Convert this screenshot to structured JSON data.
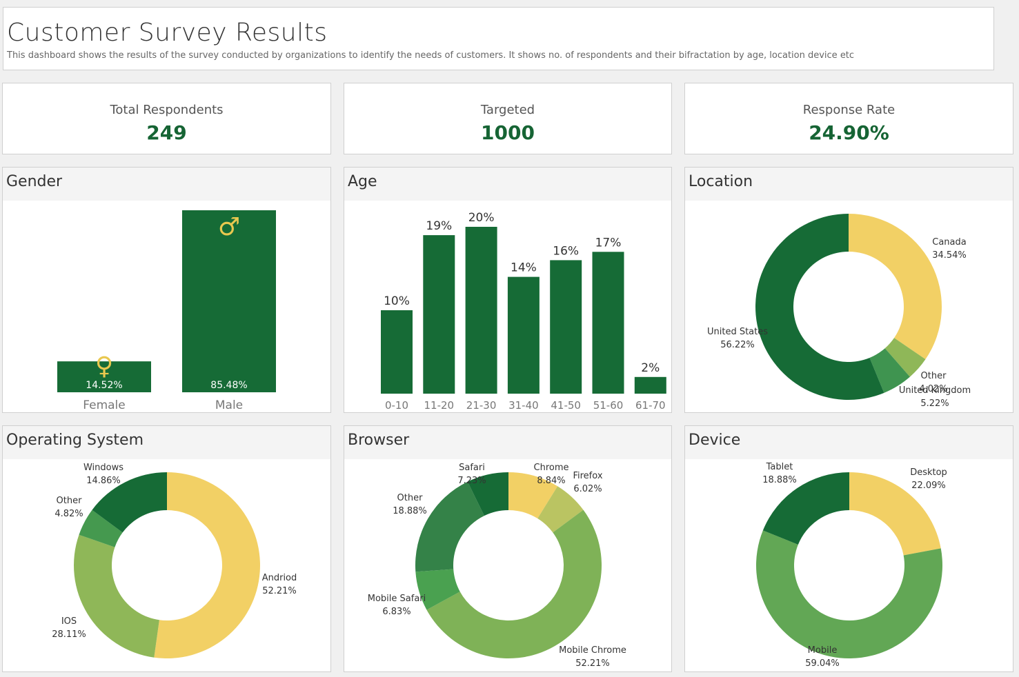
{
  "header": {
    "title": "Customer Survey Results",
    "subtitle": "This dashboard shows the results of the survey conducted by organizations to identify the needs of customers. It shows no. of respondents and their bifractation by age, location device etc"
  },
  "kpis": [
    {
      "label": "Total Respondents",
      "value": "249"
    },
    {
      "label": "Targeted",
      "value": "1000"
    },
    {
      "label": "Response Rate",
      "value": "24.90%"
    }
  ],
  "colors": {
    "dark_green": "#166b36",
    "yellow": "#f2d065",
    "olive": "#b9c35f",
    "light_green": "#7fb257",
    "medium_green": "#62a755",
    "mid_green": "#3b9451",
    "forest_green": "#348248"
  },
  "chart_data": [
    {
      "id": "gender",
      "type": "bar",
      "title": "Gender",
      "categories": [
        "Female",
        "Male"
      ],
      "values": [
        14.52,
        85.48
      ],
      "value_labels": [
        "14.52%",
        "85.48%"
      ],
      "icons": [
        "female-symbol-icon",
        "male-symbol-icon"
      ],
      "symbols": [
        "♀",
        "♂"
      ],
      "ylim": [
        0,
        85.48
      ]
    },
    {
      "id": "age",
      "type": "bar",
      "title": "Age",
      "categories": [
        "0-10",
        "11-20",
        "21-30",
        "31-40",
        "41-50",
        "51-60",
        "61-70"
      ],
      "values": [
        10,
        19,
        20,
        14,
        16,
        17,
        2
      ],
      "value_labels": [
        "10%",
        "19%",
        "20%",
        "14%",
        "16%",
        "17%",
        "2%"
      ],
      "ylim": [
        0,
        20
      ]
    },
    {
      "id": "location",
      "type": "pie",
      "title": "Location",
      "slices": [
        {
          "label": "Canada",
          "value": 34.54,
          "value_label": "34.54%",
          "color": "#f2d065"
        },
        {
          "label": "Other",
          "value": 4.02,
          "value_label": "4.02%",
          "color": "#8fb758"
        },
        {
          "label": "United Kingdom",
          "value": 5.22,
          "value_label": "5.22%",
          "color": "#3f9450"
        },
        {
          "label": "United States",
          "value": 56.22,
          "value_label": "56.22%",
          "color": "#166b36"
        }
      ]
    },
    {
      "id": "os",
      "type": "pie",
      "title": "Operating System",
      "slices": [
        {
          "label": "Andriod",
          "value": 52.21,
          "value_label": "52.21%",
          "color": "#f2d065"
        },
        {
          "label": "IOS",
          "value": 28.11,
          "value_label": "28.11%",
          "color": "#8fb758"
        },
        {
          "label": "Other",
          "value": 4.82,
          "value_label": "4.82%",
          "color": "#45994f"
        },
        {
          "label": "Windows",
          "value": 14.86,
          "value_label": "14.86%",
          "color": "#166b36"
        }
      ]
    },
    {
      "id": "browser",
      "type": "pie",
      "title": "Browser",
      "slices": [
        {
          "label": "Chrome",
          "value": 8.84,
          "value_label": "8.84%",
          "color": "#f2d065"
        },
        {
          "label": "Firefox",
          "value": 6.02,
          "value_label": "6.02%",
          "color": "#bac462"
        },
        {
          "label": "Mobile Chrome",
          "value": 52.21,
          "value_label": "52.21%",
          "color": "#7fb257"
        },
        {
          "label": "Mobile Safari",
          "value": 6.83,
          "value_label": "6.83%",
          "color": "#4aa150"
        },
        {
          "label": "Other",
          "value": 18.88,
          "value_label": "18.88%",
          "color": "#348248"
        },
        {
          "label": "Safari",
          "value": 7.23,
          "value_label": "7.23%",
          "color": "#166b36"
        }
      ]
    },
    {
      "id": "device",
      "type": "pie",
      "title": "Device",
      "slices": [
        {
          "label": "Desktop",
          "value": 22.09,
          "value_label": "22.09%",
          "color": "#f2d065"
        },
        {
          "label": "Mobile",
          "value": 59.04,
          "value_label": "59.04%",
          "color": "#62a755"
        },
        {
          "label": "Tablet",
          "value": 18.88,
          "value_label": "18.88%",
          "color": "#166b36"
        }
      ]
    }
  ]
}
